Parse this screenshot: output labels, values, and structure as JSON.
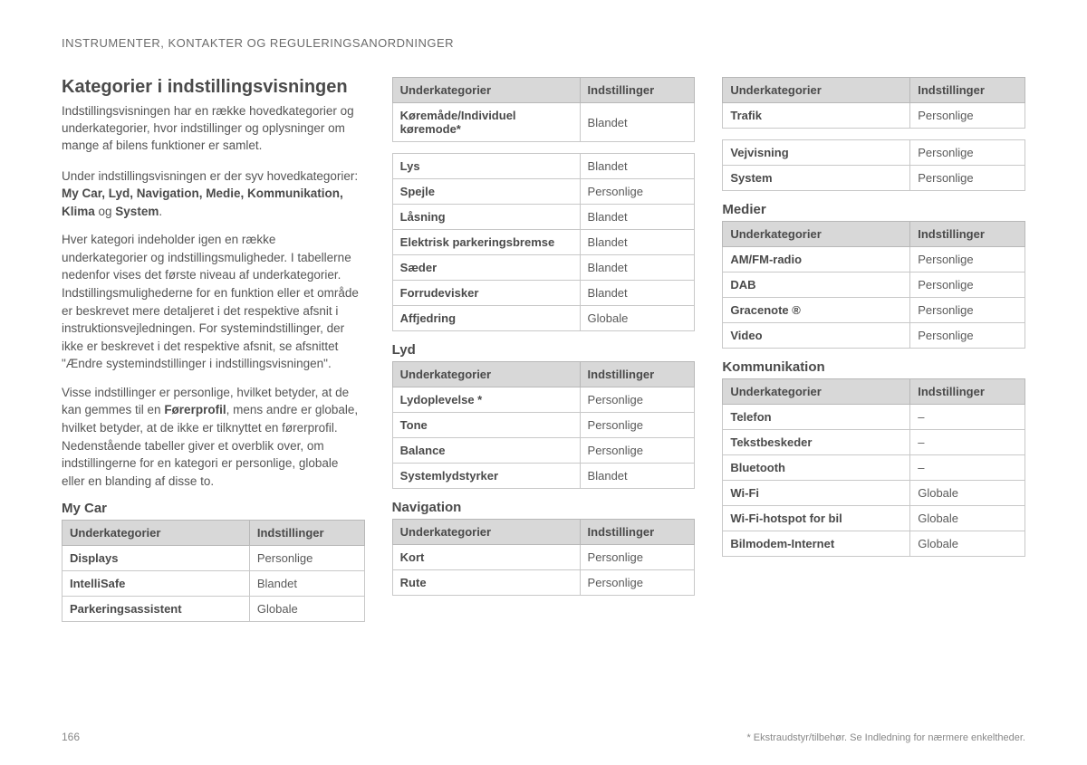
{
  "header": "INSTRUMENTER, KONTAKTER OG REGULERINGSANORDNINGER",
  "title": "Kategorier i indstillingsvisningen",
  "intro": "Indstillingsvisningen har en række hovedkategorier og underkategorier, hvor indstillinger og oplysninger om mange af bilens funktioner er samlet.",
  "p1_a": "Under indstillingsvisningen er der syv hovedkategorier: ",
  "p1_bold": "My Car, Lyd, Navigation, Medie, Kommunikation, Klima",
  "p1_mid": " og ",
  "p1_bold2": "System",
  "p1_end": ".",
  "p2": "Hver kategori indeholder igen en række underkategorier og indstillingsmuligheder. I tabellerne nedenfor vises det første niveau af underkategorier. Indstillingsmulighederne for en funktion eller et område er beskrevet mere detaljeret i det respektive afsnit i instruktionsvejledningen. For systemindstillinger, der ikke er beskrevet i det respektive afsnit, se afsnittet \"Ændre systemindstillinger i indstillingsvisningen\".",
  "p3_a": "Visse indstillinger er personlige, hvilket betyder, at de kan gemmes til en ",
  "p3_bold": "Førerprofil",
  "p3_b": ", mens andre er globale, hvilket betyder, at de ikke er tilknyttet en førerprofil. Nedenstående tabeller giver et overblik over, om indstillingerne for en kategori er personlige, globale eller en blanding af disse to.",
  "th_sub": "Underkategorier",
  "th_set": "Indstillinger",
  "sections": {
    "mycar": {
      "title": "My Car",
      "rows": [
        [
          "Displays",
          "Personlige"
        ],
        [
          "IntelliSafe",
          "Blandet"
        ],
        [
          "Parkeringsassistent",
          "Globale"
        ]
      ]
    },
    "mycar2": {
      "rows": [
        [
          "Køremåde/Individuel køremode*",
          "Blandet"
        ],
        [
          "Lys",
          "Blandet"
        ],
        [
          "Spejle",
          "Personlige"
        ],
        [
          "Låsning",
          "Blandet"
        ],
        [
          "Elektrisk parkeringsbremse",
          "Blandet"
        ],
        [
          "Sæder",
          "Blandet"
        ],
        [
          "Forrudevisker",
          "Blandet"
        ],
        [
          "Affjedring",
          "Globale"
        ]
      ]
    },
    "lyd": {
      "title": "Lyd",
      "rows": [
        [
          "Lydoplevelse *",
          "Personlige"
        ],
        [
          "Tone",
          "Personlige"
        ],
        [
          "Balance",
          "Personlige"
        ],
        [
          "Systemlydstyrker",
          "Blandet"
        ]
      ]
    },
    "navigation": {
      "title": "Navigation",
      "rows": [
        [
          "Kort",
          "Personlige"
        ],
        [
          "Rute",
          "Personlige"
        ]
      ]
    },
    "navigation2": {
      "rows": [
        [
          "Trafik",
          "Personlige"
        ],
        [
          "Vejvisning",
          "Personlige"
        ],
        [
          "System",
          "Personlige"
        ]
      ]
    },
    "medier": {
      "title": "Medier",
      "rows": [
        [
          "AM/FM-radio",
          "Personlige"
        ],
        [
          "DAB",
          "Personlige"
        ],
        [
          "Gracenote ®",
          "Personlige"
        ],
        [
          "Video",
          "Personlige"
        ]
      ]
    },
    "kommunikation": {
      "title": "Kommunikation",
      "rows": [
        [
          "Telefon",
          "–"
        ],
        [
          "Tekstbeskeder",
          "–"
        ],
        [
          "Bluetooth",
          "–"
        ],
        [
          "Wi-Fi",
          "Globale"
        ],
        [
          "Wi-Fi-hotspot for bil",
          "Globale"
        ],
        [
          "Bilmodem-Internet",
          "Globale"
        ]
      ]
    }
  },
  "page_number": "166",
  "footnote": "* Ekstraudstyr/tilbehør. Se Indledning for nærmere enkeltheder."
}
